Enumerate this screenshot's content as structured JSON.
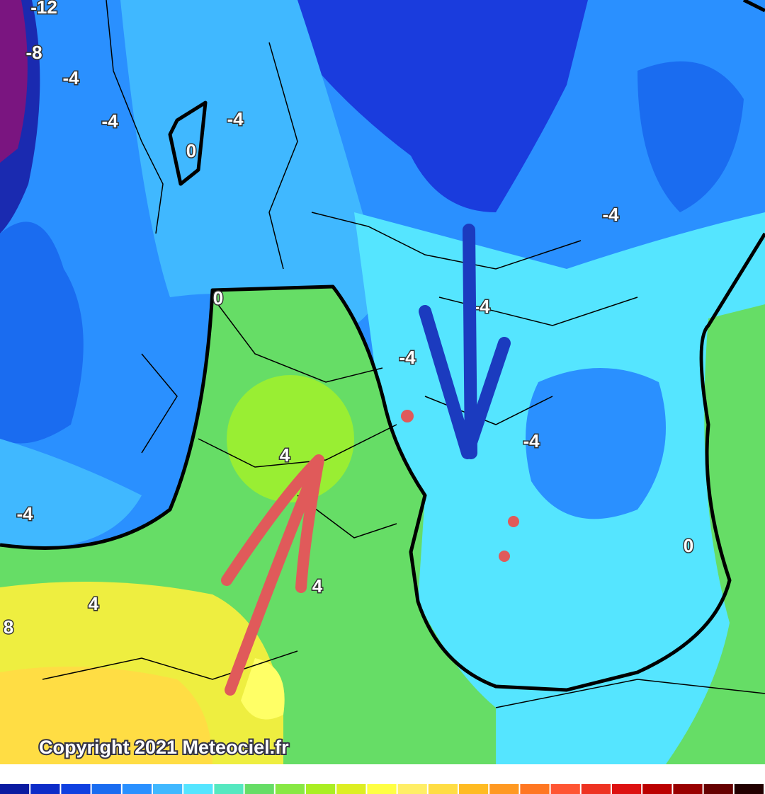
{
  "map": {
    "copyright": "Copyright 2021 Meteociel.fr",
    "contour_labels": [
      "-12",
      "-8",
      "-4",
      "-4",
      "0",
      "-4",
      "-4",
      "0",
      "-4",
      "-4",
      "-4",
      "4",
      "-4",
      "0",
      "4",
      "4",
      "8"
    ],
    "legend_colors": [
      "#0a1aa0",
      "#0d2cc8",
      "#1040e0",
      "#1a6cf0",
      "#2a90ff",
      "#40b8ff",
      "#55e5ff",
      "#55e8c0",
      "#66dd66",
      "#88e844",
      "#aaee22",
      "#ddee22",
      "#ffff44",
      "#ffee66",
      "#ffdd44",
      "#ffbb22",
      "#ff9922",
      "#ff7722",
      "#ff5533",
      "#ee3322",
      "#dd1111",
      "#bb0000",
      "#990000",
      "#660000",
      "#220000"
    ]
  }
}
